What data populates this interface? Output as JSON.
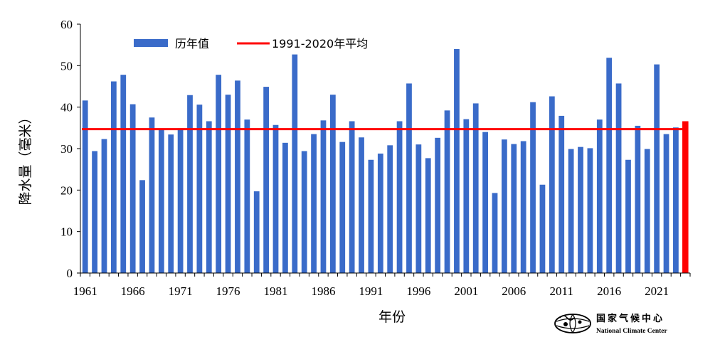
{
  "chart_data": {
    "type": "bar",
    "xlabel": "年份",
    "ylabel": "降水量（毫米）",
    "ylim": [
      0,
      60
    ],
    "yticks": [
      0,
      10,
      20,
      30,
      40,
      50,
      60
    ],
    "xtick_labels": [
      "1961",
      "1966",
      "1971",
      "1976",
      "1981",
      "1986",
      "1991",
      "1996",
      "2001",
      "2006",
      "2011",
      "2016",
      "2021"
    ],
    "years": [
      1961,
      1962,
      1963,
      1964,
      1965,
      1966,
      1967,
      1968,
      1969,
      1970,
      1971,
      1972,
      1973,
      1974,
      1975,
      1976,
      1977,
      1978,
      1979,
      1980,
      1981,
      1982,
      1983,
      1984,
      1985,
      1986,
      1987,
      1988,
      1989,
      1990,
      1991,
      1992,
      1993,
      1994,
      1995,
      1996,
      1997,
      1998,
      1999,
      2000,
      2001,
      2002,
      2003,
      2004,
      2005,
      2006,
      2007,
      2008,
      2009,
      2010,
      2011,
      2012,
      2013,
      2014,
      2015,
      2016,
      2017,
      2018,
      2019,
      2020,
      2021,
      2022,
      2023,
      2024
    ],
    "series": [
      {
        "name": "历年值",
        "type": "bar",
        "color": "#3a6bc9",
        "values": [
          41.6,
          29.4,
          32.3,
          46.2,
          47.8,
          40.7,
          22.4,
          37.5,
          34.7,
          33.4,
          34.9,
          42.9,
          40.6,
          36.6,
          47.8,
          43.0,
          46.4,
          37.0,
          19.7,
          44.9,
          35.7,
          31.4,
          52.7,
          29.4,
          33.5,
          36.8,
          43.0,
          31.6,
          36.6,
          32.7,
          27.3,
          28.8,
          30.8,
          36.6,
          45.7,
          31.0,
          27.7,
          32.6,
          39.2,
          54.0,
          37.1,
          40.9,
          34.0,
          19.3,
          32.2,
          31.1,
          31.8,
          41.2,
          21.3,
          42.6,
          37.9,
          29.9,
          30.4,
          30.1,
          37.0,
          51.9,
          45.7,
          27.3,
          35.5,
          29.9,
          50.3,
          33.5,
          35.1,
          36.6
        ]
      },
      {
        "name": "1991-2020年平均",
        "type": "line",
        "color": "#ff0000",
        "value": 34.7
      }
    ],
    "highlight": {
      "year": 2024,
      "color": "#ff0000"
    },
    "legend_placement": "top",
    "grid": false
  },
  "logo": {
    "name_cn": "国家气候中心",
    "name_en": "National Climate Center",
    "emblem_icon": "cma-globe-emblem-icon"
  }
}
